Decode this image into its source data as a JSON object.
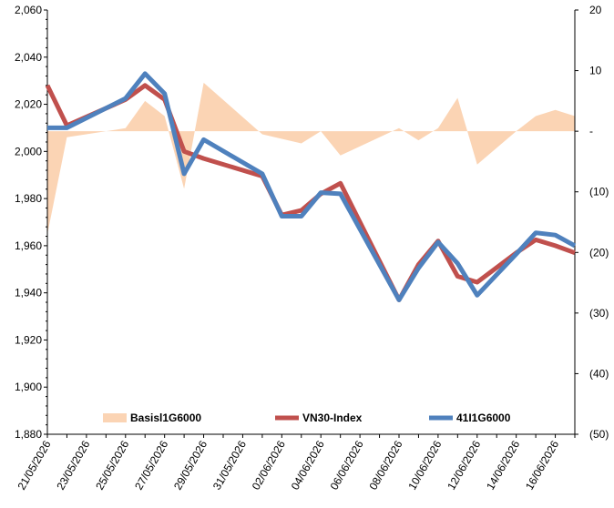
{
  "chart_data": {
    "type": "line",
    "x": [
      "21/05/2026",
      "22/05/2026",
      "23/05/2026",
      "24/05/2026",
      "25/05/2026",
      "26/05/2026",
      "27/05/2026",
      "28/05/2026",
      "29/05/2026",
      "30/05/2026",
      "31/05/2026",
      "01/06/2026",
      "02/06/2026",
      "03/06/2026",
      "04/06/2026",
      "05/06/2026",
      "06/06/2026",
      "07/06/2026",
      "08/06/2026",
      "09/06/2026",
      "10/06/2026",
      "11/06/2026",
      "12/06/2026",
      "13/06/2026",
      "14/06/2026",
      "15/06/2026",
      "16/06/2026",
      "17/06/2026"
    ],
    "x_tick_labels": [
      "21/05/2026",
      "23/05/2026",
      "25/05/2026",
      "27/05/2026",
      "29/05/2026",
      "31/05/2026",
      "02/06/2026",
      "04/06/2026",
      "06/06/2026",
      "08/06/2026",
      "10/06/2026",
      "12/06/2026",
      "14/06/2026",
      "16/06/2026"
    ],
    "y_left": {
      "min": 1880,
      "max": 2060,
      "step": 20,
      "tick_labels": [
        "1,880",
        "1,900",
        "1,920",
        "1,940",
        "1,960",
        "1,980",
        "2,000",
        "2,020",
        "2,040",
        "2,060"
      ]
    },
    "y_right": {
      "min": -50,
      "max": 20,
      "step": 10,
      "tick_labels": [
        "(50)",
        "(40)",
        "(30)",
        "(20)",
        "(10)",
        "-",
        "10",
        "20"
      ]
    },
    "series": [
      {
        "name": "Basis41I1G6000",
        "legend_label": "Basisl1G6000",
        "kind": "area",
        "axis": "right",
        "color": "#fbd4b4",
        "points": [
          [
            "21/05/2026",
            -17
          ],
          [
            "22/05/2026",
            -1
          ],
          [
            "25/05/2026",
            0.5
          ],
          [
            "26/05/2026",
            5
          ],
          [
            "27/05/2026",
            2.5
          ],
          [
            "28/05/2026",
            -9.5
          ],
          [
            "29/05/2026",
            8
          ],
          [
            "01/06/2026",
            -0.5
          ],
          [
            "03/06/2026",
            -2
          ],
          [
            "04/06/2026",
            0
          ],
          [
            "05/06/2026",
            -4
          ],
          [
            "08/06/2026",
            0.5
          ],
          [
            "09/06/2026",
            -1.5
          ],
          [
            "10/06/2026",
            0.5
          ],
          [
            "11/06/2026",
            5.5
          ],
          [
            "12/06/2026",
            -5.5
          ],
          [
            "14/06/2026",
            0
          ],
          [
            "15/06/2026",
            2.5
          ],
          [
            "16/06/2026",
            3.5
          ],
          [
            "17/06/2026",
            2.5
          ]
        ]
      },
      {
        "name": "VN30-Index",
        "legend_label": "VN30-Index",
        "kind": "line",
        "axis": "left",
        "color": "#c0504d",
        "points": [
          [
            "21/05/2026",
            2028
          ],
          [
            "22/05/2026",
            2011
          ],
          [
            "25/05/2026",
            2022
          ],
          [
            "26/05/2026",
            2028
          ],
          [
            "27/05/2026",
            2022
          ],
          [
            "28/05/2026",
            2000
          ],
          [
            "29/05/2026",
            1997
          ],
          [
            "01/06/2026",
            1989.5
          ],
          [
            "02/06/2026",
            1973
          ],
          [
            "03/06/2026",
            1975
          ],
          [
            "04/06/2026",
            1982
          ],
          [
            "05/06/2026",
            1986.5
          ],
          [
            "08/06/2026",
            1937
          ],
          [
            "09/06/2026",
            1952
          ],
          [
            "10/06/2026",
            1962
          ],
          [
            "11/06/2026",
            1947
          ],
          [
            "12/06/2026",
            1944.5
          ],
          [
            "14/06/2026",
            1957
          ],
          [
            "15/06/2026",
            1962.5
          ],
          [
            "16/06/2026",
            1960
          ],
          [
            "17/06/2026",
            1957
          ]
        ]
      },
      {
        "name": "41I1G6000",
        "legend_label": "41I1G6000",
        "kind": "line",
        "axis": "left",
        "color": "#4f81bd",
        "points": [
          [
            "21/05/2026",
            2010
          ],
          [
            "22/05/2026",
            2010
          ],
          [
            "25/05/2026",
            2022.5
          ],
          [
            "26/05/2026",
            2033
          ],
          [
            "27/05/2026",
            2024.5
          ],
          [
            "28/05/2026",
            1990.5
          ],
          [
            "29/05/2026",
            2005
          ],
          [
            "01/06/2026",
            1990.5
          ],
          [
            "02/06/2026",
            1972.5
          ],
          [
            "03/06/2026",
            1972.5
          ],
          [
            "04/06/2026",
            1982.5
          ],
          [
            "05/06/2026",
            1982
          ],
          [
            "08/06/2026",
            1937
          ],
          [
            "09/06/2026",
            1950.5
          ],
          [
            "10/06/2026",
            1961.5
          ],
          [
            "11/06/2026",
            1952.5
          ],
          [
            "12/06/2026",
            1939
          ],
          [
            "14/06/2026",
            1956.5
          ],
          [
            "15/06/2026",
            1965.5
          ],
          [
            "16/06/2026",
            1964.5
          ],
          [
            "17/06/2026",
            1960
          ]
        ]
      }
    ],
    "grid": false,
    "legend_position": "bottom"
  }
}
